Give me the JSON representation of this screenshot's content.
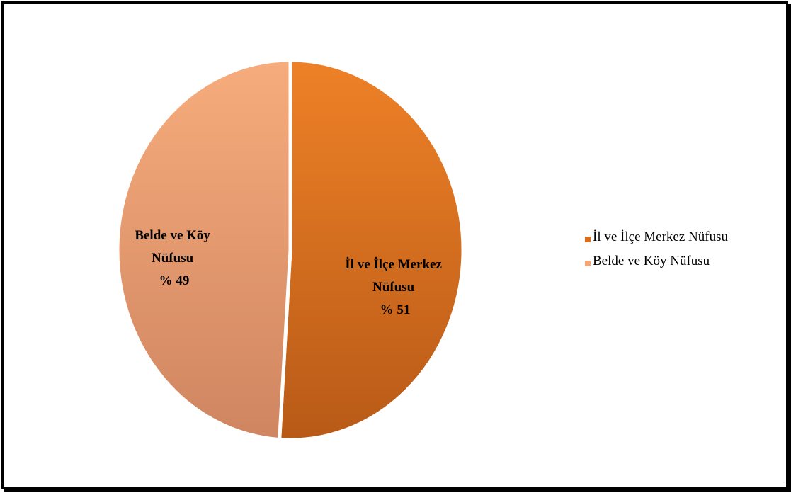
{
  "chart_data": {
    "type": "pie",
    "title": "",
    "slices": [
      {
        "label": "İl ve İlçe Merkez Nüfusu",
        "value": 51,
        "percent_label": "% 51",
        "color": "#e0721e"
      },
      {
        "label": "Belde ve Köy Nüfusu",
        "value": 49,
        "percent_label": "% 49",
        "color": "#f2a677"
      }
    ],
    "data_labels": [
      {
        "line1": "İl ve İlçe Merkez",
        "line2": "Nüfusu",
        "line3": "% 51"
      },
      {
        "line1": "Belde ve Köy",
        "line2": "Nüfusu",
        "line3": "% 49"
      }
    ],
    "legend": {
      "position": "right",
      "items": [
        "İl ve İlçe Merkez Nüfusu",
        "Belde ve Köy Nüfusu"
      ]
    }
  }
}
